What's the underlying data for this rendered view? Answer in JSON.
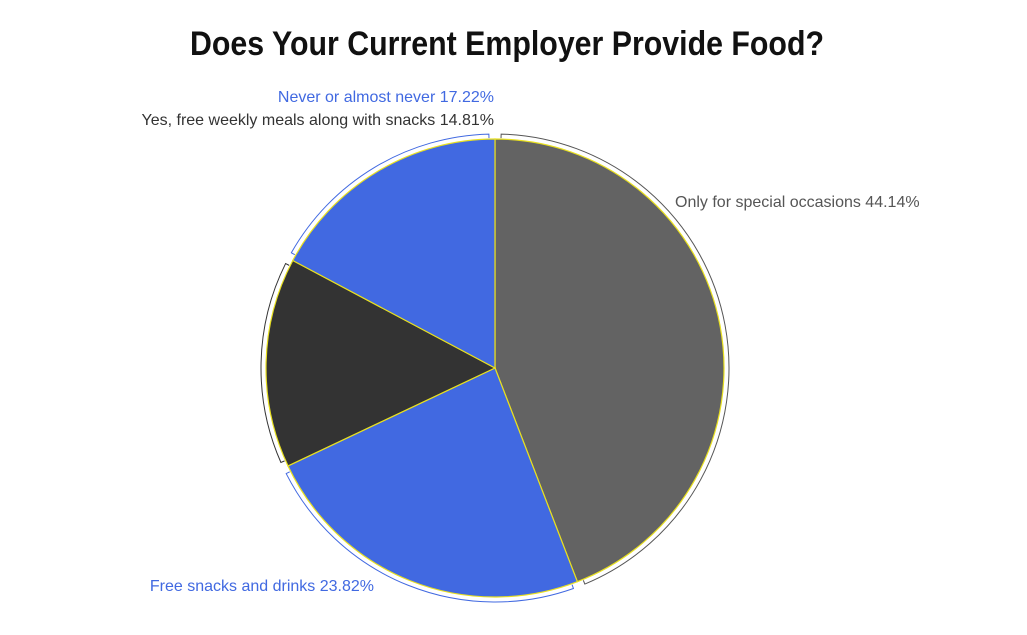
{
  "chart_data": {
    "type": "pie",
    "title": "Does Your Current Employer Provide Food?",
    "slices": [
      {
        "label": "Only for special occasions 44.14%",
        "value": 44.14,
        "color": "#636363",
        "text_color": "#555555"
      },
      {
        "label": "Free snacks and drinks 23.82%",
        "value": 23.82,
        "color": "#4169e1",
        "text_color": "#4169e1"
      },
      {
        "label": "Yes, free weekly meals along with snacks 14.81%",
        "value": 14.81,
        "color": "#333333",
        "text_color": "#333333"
      },
      {
        "label": "Never or almost never 17.22%",
        "value": 17.22,
        "color": "#4169e1",
        "text_color": "#4169e1"
      }
    ],
    "slice_border_color": "#e8e020",
    "legend": "none"
  }
}
